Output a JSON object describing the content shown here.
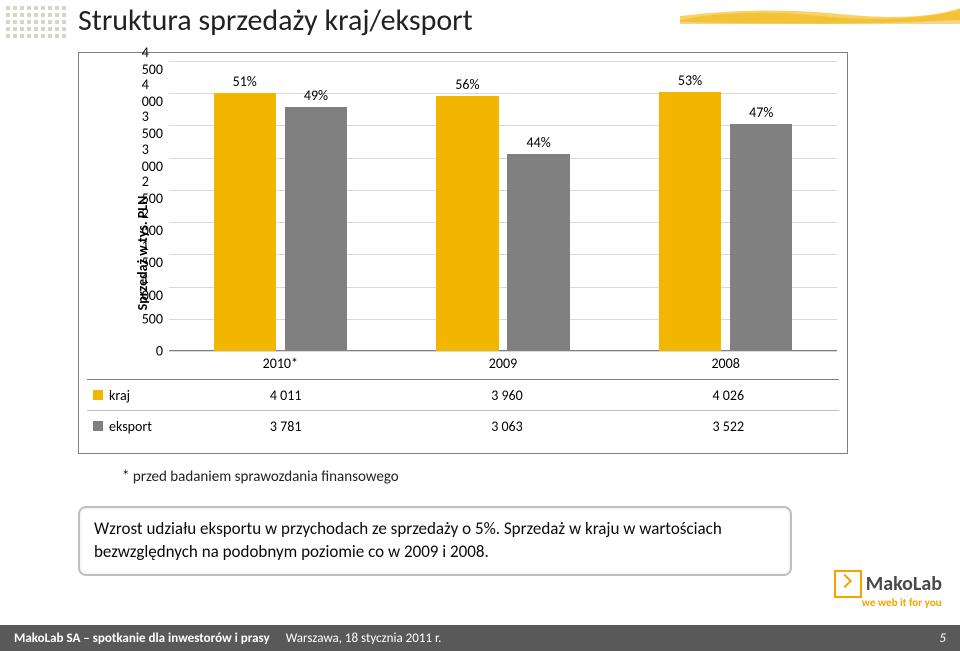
{
  "title": "Struktura sprzedaży kraj/eksport",
  "chart": {
    "type": "bar",
    "y_axis_title": "Sprzedaż w tys. PLN",
    "y_min": 0,
    "y_max": 4500,
    "y_tick_step": 500,
    "y_ticks": [
      "0",
      "500",
      "1 000",
      "1 500",
      "2 000",
      "2 500",
      "3 000",
      "3 500",
      "4 000",
      "4 500"
    ],
    "categories": [
      "2010*",
      "2009",
      "2008"
    ],
    "series": [
      {
        "name": "kraj",
        "color": "#f2b600",
        "values": [
          4011,
          3960,
          4026
        ],
        "pct_labels": [
          "51%",
          "56%",
          "53%"
        ]
      },
      {
        "name": "eksport",
        "color": "#808080",
        "values": [
          3781,
          3063,
          3522
        ],
        "pct_labels": [
          "49%",
          "44%",
          "47%"
        ]
      }
    ],
    "grid_color": "#d9d9d9",
    "axis_color": "#7f7f7f",
    "background_color": "#ffffff",
    "label_fontsize": 14,
    "title_fontsize": 30
  },
  "table": {
    "rows": [
      {
        "label": "kraj",
        "swatch": "#f2b600",
        "cells": [
          "4 011",
          "3 960",
          "4 026"
        ]
      },
      {
        "label": "eksport",
        "swatch": "#808080",
        "cells": [
          "3 781",
          "3 063",
          "3 522"
        ]
      }
    ]
  },
  "footnote": "* przed badaniem sprawozdania finansowego",
  "callout": "Wzrost udziału eksportu w przychodach ze sprzedaży o 5%. Sprzedaż w kraju w  wartościach bezwzględnych na podobnym poziomie co w 2009 i 2008.",
  "logo": {
    "name": "MakoLab",
    "tagline": "we web it for you"
  },
  "footer": {
    "left_bold": "MakoLab SA – spotkanie dla inwestorów i prasy",
    "left_plain": "Warszawa, 18 stycznia 2011 r.",
    "page": "5"
  },
  "colors": {
    "kraj": "#f2b600",
    "eksport": "#808080",
    "footer_bg": "#595959",
    "accent": "#f4a300"
  }
}
